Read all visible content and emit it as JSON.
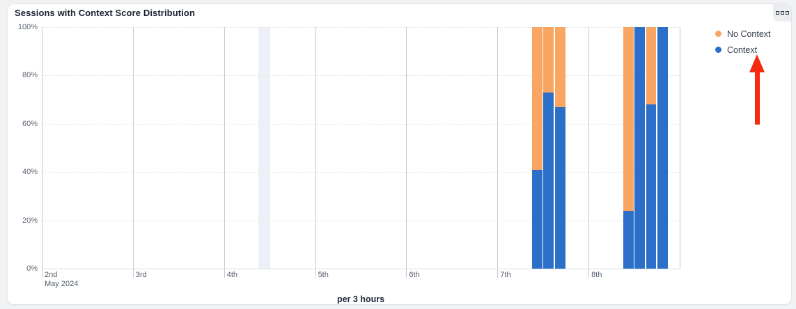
{
  "card": {
    "title": "Sessions with Context Score Distribution"
  },
  "chart_data": {
    "type": "bar",
    "stacked": true,
    "unit": "percent",
    "title": "Sessions with Context Score Distribution",
    "xlabel": "per 3 hours",
    "ylabel": "",
    "ylim": [
      0,
      100
    ],
    "y_ticks": [
      0,
      20,
      40,
      60,
      80,
      100
    ],
    "grid": "horizontal-dashed, vertical-solid-per-day",
    "legend_position": "top-right",
    "x_axis": {
      "month_label": "May 2024",
      "day_ticks": [
        "2nd",
        "3rd",
        "4th",
        "5th",
        "6th",
        "7th",
        "8th"
      ],
      "slots_per_day": 8,
      "slot_hours": 3
    },
    "series": [
      {
        "name": "No Context",
        "color": "#f8a661"
      },
      {
        "name": "Context",
        "color": "#2b6fc9"
      }
    ],
    "bars": [
      {
        "day": "7th",
        "time": "09:00",
        "context": 41,
        "no_context": 59
      },
      {
        "day": "7th",
        "time": "12:00",
        "context": 73,
        "no_context": 27
      },
      {
        "day": "7th",
        "time": "15:00",
        "context": 67,
        "no_context": 33
      },
      {
        "day": "8th",
        "time": "09:00",
        "context": 24,
        "no_context": 76
      },
      {
        "day": "8th",
        "time": "12:00",
        "context": 100,
        "no_context": 0
      },
      {
        "day": "8th",
        "time": "15:00",
        "context": 68,
        "no_context": 32
      },
      {
        "day": "8th",
        "time": "18:00",
        "context": 100,
        "no_context": 0
      }
    ],
    "highlight_band": {
      "day": "4th",
      "time": "09:00",
      "color": "#edf1f7"
    }
  },
  "legend": {
    "items": [
      {
        "label": "No Context",
        "color": "#f8a661"
      },
      {
        "label": "Context",
        "color": "#2b6fc9"
      }
    ]
  },
  "annotation": {
    "arrow_color": "#f52a0e",
    "direction": "up",
    "points_at": "Context"
  }
}
